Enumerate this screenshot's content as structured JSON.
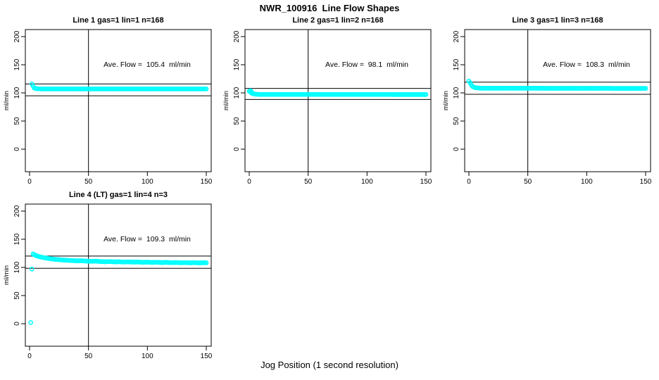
{
  "figure": {
    "title": "NWR_100916  Line Flow Shapes",
    "xlabel": "Jog Position (1 second resolution)"
  },
  "chart_data": {
    "type": "scatter",
    "marker": "open-circle",
    "point_color": "#00ffff",
    "line_color": "#000000",
    "title": "NWR_100916  Line Flow Shapes",
    "xlabel": "Jog Position (1 second resolution)",
    "ylabel": "ml/min",
    "axes": {
      "x_ticks": [
        0,
        50,
        100,
        150
      ],
      "y_ticks": [
        0,
        50,
        100,
        150,
        200
      ],
      "xlim": [
        0,
        154
      ],
      "ylim": [
        0,
        210
      ],
      "grid": false
    },
    "render_step": 1,
    "annotation_anchor": {
      "x": 100,
      "y": 150
    },
    "charts": [
      {
        "title": "Line 1 gas=1 lin=1 n=168",
        "annotation": "Ave. Flow =  105.4  ml/min",
        "ave_flow": 105.4,
        "n": 168,
        "vline_x": 50,
        "hline_hi": 115.9,
        "hline_lo": 94.9,
        "anchors": [
          [
            2,
            116
          ],
          [
            3,
            112
          ],
          [
            4,
            108.5
          ],
          [
            6,
            107.5
          ],
          [
            10,
            107
          ],
          [
            150,
            107
          ]
        ],
        "outliers": []
      },
      {
        "title": "Line 2 gas=1 lin=2 n=168",
        "annotation": "Ave. Flow =  98.1  ml/min",
        "ave_flow": 98.1,
        "n": 168,
        "vline_x": 50,
        "hline_hi": 107.9,
        "hline_lo": 88.3,
        "anchors": [
          [
            0,
            103
          ],
          [
            1,
            101.5
          ],
          [
            2,
            99.5
          ],
          [
            4,
            98
          ],
          [
            8,
            97.3
          ],
          [
            150,
            97
          ]
        ],
        "outliers": [
          [
            1,
            104
          ],
          [
            2,
            102
          ]
        ]
      },
      {
        "title": "Line 3 gas=1 lin=3 n=168",
        "annotation": "Ave. Flow =  108.3  ml/min",
        "ave_flow": 108.3,
        "n": 168,
        "vline_x": 50,
        "hline_hi": 119.1,
        "hline_lo": 97.5,
        "anchors": [
          [
            0,
            121
          ],
          [
            1,
            118
          ],
          [
            2,
            114.5
          ],
          [
            3,
            111.5
          ],
          [
            5,
            109.5
          ],
          [
            10,
            108.3
          ],
          [
            150,
            108
          ]
        ],
        "outliers": []
      },
      {
        "title": "Line 4 (LT) gas=1 lin=4 n=3",
        "annotation": "Ave. Flow =  109.3  ml/min",
        "ave_flow": 109.3,
        "n": 3,
        "vline_x": 50,
        "hline_hi": 120.2,
        "hline_lo": 98.4,
        "anchors": [
          [
            3,
            124
          ],
          [
            4,
            122.5
          ],
          [
            5,
            121.5
          ],
          [
            6,
            120.5
          ],
          [
            8,
            119.3
          ],
          [
            10,
            118.3
          ],
          [
            12,
            117.4
          ],
          [
            14,
            116.6
          ],
          [
            16,
            115.9
          ],
          [
            19,
            115
          ],
          [
            22,
            114.3
          ],
          [
            25,
            113.7
          ],
          [
            28,
            113.2
          ],
          [
            32,
            112.6
          ],
          [
            36,
            112.1
          ],
          [
            40,
            111.7
          ],
          [
            44,
            111.9
          ],
          [
            48,
            111.2
          ],
          [
            52,
            110.8
          ],
          [
            56,
            111.1
          ],
          [
            60,
            110.4
          ],
          [
            64,
            110
          ],
          [
            68,
            110.4
          ],
          [
            72,
            109.8
          ],
          [
            76,
            110.1
          ],
          [
            80,
            109.5
          ],
          [
            84,
            109.9
          ],
          [
            88,
            109.3
          ],
          [
            92,
            109.6
          ],
          [
            96,
            109
          ],
          [
            100,
            109.4
          ],
          [
            104,
            108.8
          ],
          [
            108,
            109.1
          ],
          [
            112,
            108.6
          ],
          [
            116,
            108.9
          ],
          [
            120,
            108.4
          ],
          [
            124,
            108.7
          ],
          [
            128,
            108.2
          ],
          [
            132,
            108.5
          ],
          [
            136,
            108.1
          ],
          [
            140,
            108.4
          ],
          [
            144,
            108
          ],
          [
            148,
            108.3
          ],
          [
            150,
            108.1
          ]
        ],
        "outliers": [
          [
            1,
            2
          ],
          [
            2,
            97
          ]
        ]
      }
    ]
  }
}
